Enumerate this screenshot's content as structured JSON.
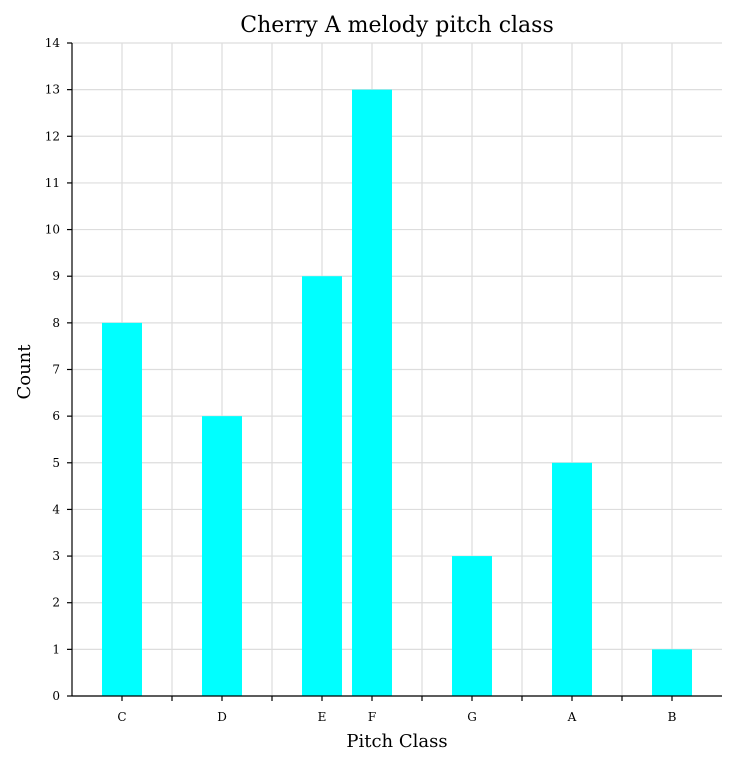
{
  "chart_data": {
    "type": "bar",
    "title": "Cherry A melody pitch class",
    "xlabel": "Pitch Class",
    "ylabel": "Count",
    "categories": [
      "C",
      "D",
      "E",
      "F",
      "G",
      "A",
      "B"
    ],
    "x": [
      0,
      2,
      4,
      5,
      7,
      9,
      11
    ],
    "values": [
      8,
      6,
      9,
      13,
      3,
      5,
      1
    ],
    "xlim": [
      -1,
      12
    ],
    "ylim": [
      0,
      14
    ],
    "yticks": [
      0,
      1,
      2,
      3,
      4,
      5,
      6,
      7,
      8,
      9,
      10,
      11,
      12,
      13,
      14
    ],
    "grid": true,
    "bar_color": "#00ffff"
  }
}
